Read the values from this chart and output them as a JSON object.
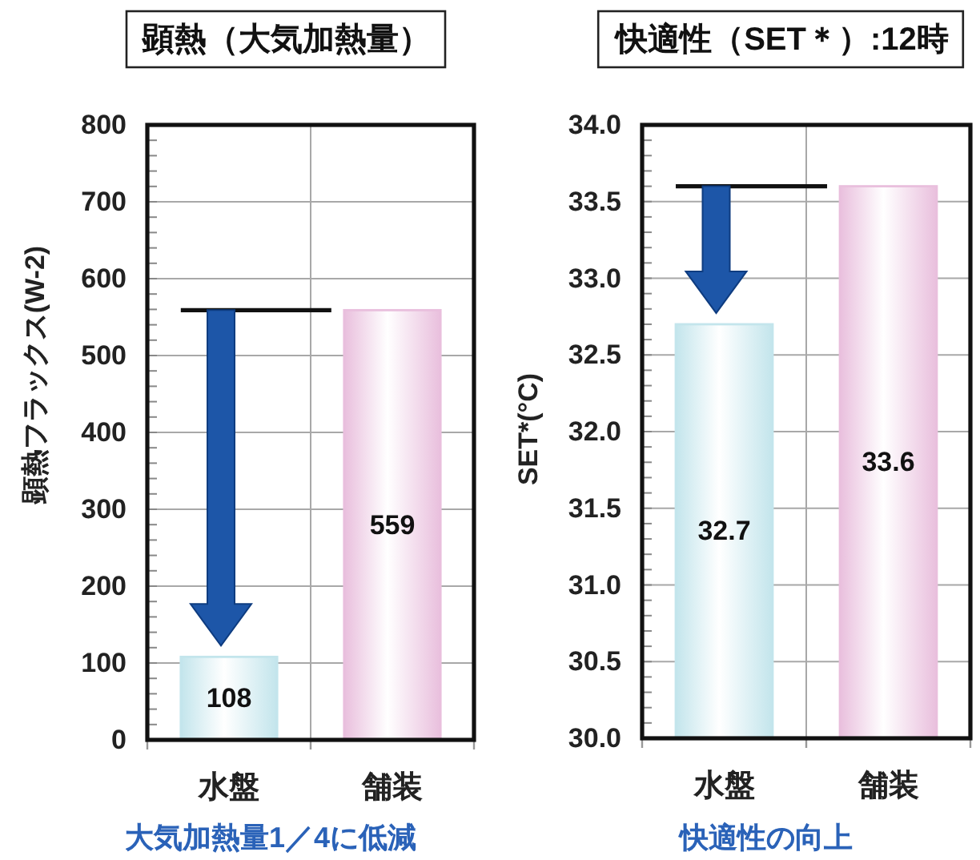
{
  "chart_data": [
    {
      "type": "bar",
      "title": "顕熱（大気加熱量）",
      "ylabel": "顕熱フラックス(W-2)",
      "categories": [
        "水盤",
        "舗装"
      ],
      "values": [
        108,
        559
      ],
      "colors": [
        "#c3e5ec",
        "#e9bfdd"
      ],
      "ylim": [
        0,
        800
      ],
      "yticks": [
        0,
        100,
        200,
        300,
        400,
        500,
        600,
        700,
        800
      ],
      "grid": true,
      "data_labels": true,
      "ref_lines": [
        {
          "axis": "y",
          "value": 559,
          "color": "#111111"
        }
      ],
      "annotations": [
        "大気加熱量1／4に低減"
      ]
    },
    {
      "type": "bar",
      "title": "快適性（SET＊）:12時",
      "ylabel": "SET*(°C)",
      "categories": [
        "水盤",
        "舗装"
      ],
      "values": [
        32.7,
        33.6
      ],
      "colors": [
        "#c3e5ec",
        "#e9bfdd"
      ],
      "ylim": [
        30,
        34
      ],
      "yticks": [
        {
          "value": 30,
          "label": "30.0"
        },
        30.5,
        {
          "value": 31,
          "label": "31.0"
        },
        31.5,
        {
          "value": 32,
          "label": "32.0"
        },
        32.5,
        {
          "value": 33,
          "label": "33.0"
        },
        33.5,
        {
          "value": 34,
          "label": "34.0"
        }
      ],
      "grid": true,
      "data_labels": true,
      "ref_lines": [
        {
          "axis": "y",
          "value": 33.6,
          "color": "#111111"
        }
      ],
      "annotations": [
        "快適性の向上"
      ]
    }
  ]
}
